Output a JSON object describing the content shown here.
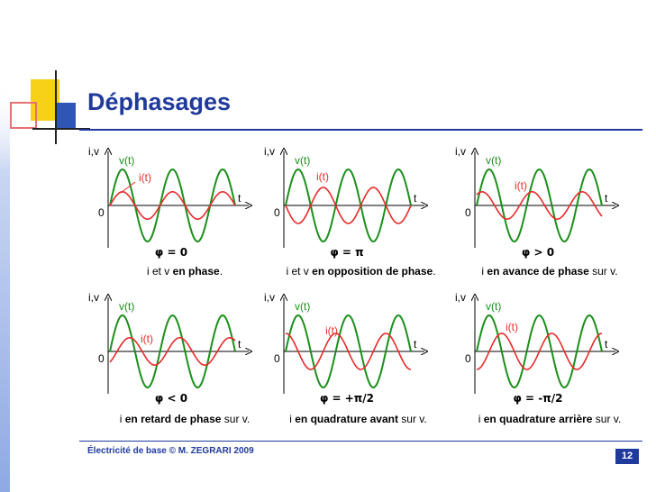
{
  "slide": {
    "title": "Déphasages",
    "footer": "Électricité de base © M. ZEGRARI 2009",
    "page_number": "12"
  },
  "colors": {
    "voltage": "#1b8f1b",
    "current": "#e82a2a",
    "title": "#1f3a9c",
    "deco_yellow": "#f7d117",
    "deco_blue": "#3056b5",
    "deco_red": "#e57272"
  },
  "panels": [
    {
      "axis_y": "i,v",
      "axis_x": "t",
      "origin": "0",
      "v_label": "v(t)",
      "i_label": "i(t)",
      "phase_label": "φ = 0",
      "phase_rad": 0,
      "current_amp": 0.38,
      "caption": {
        "before": "i et v ",
        "emph": "en phase",
        "after": "."
      }
    },
    {
      "axis_y": "i,v",
      "axis_x": "t",
      "origin": "0",
      "v_label": "v(t)",
      "i_label": "i(t)",
      "phase_label": "φ = π",
      "phase_rad": 3.14159,
      "current_amp": 0.5,
      "caption": {
        "before": "i et v ",
        "emph": "en opposition de phase",
        "after": "."
      }
    },
    {
      "axis_y": "i,v",
      "axis_x": "t",
      "origin": "0",
      "v_label": "v(t)",
      "i_label": "i(t)",
      "phase_label": "φ > 0",
      "phase_rad": 0.9,
      "current_amp": 0.38,
      "caption": {
        "before": "i ",
        "emph": "en avance de phase",
        "after": " sur v."
      }
    },
    {
      "axis_y": "i,v",
      "axis_x": "t",
      "origin": "0",
      "v_label": "v(t)",
      "i_label": "i(t)",
      "phase_label": "φ < 0",
      "phase_rad": -0.9,
      "current_amp": 0.38,
      "caption": {
        "before": "i ",
        "emph": "en retard de phase",
        "after": " sur v."
      }
    },
    {
      "axis_y": "i,v",
      "axis_x": "t",
      "origin": "0",
      "v_label": "v(t)",
      "i_label": "i(t)",
      "phase_label": "φ = +π/2",
      "phase_rad": 1.5708,
      "current_amp": 0.5,
      "caption": {
        "before": "i ",
        "emph": "en quadrature avant",
        "after": " sur v."
      }
    },
    {
      "axis_y": "i,v",
      "axis_x": "t",
      "origin": "0",
      "v_label": "v(t)",
      "i_label": "i(t)",
      "phase_label": "φ = -π/2",
      "phase_rad": -1.5708,
      "current_amp": 0.5,
      "caption": {
        "before": "i ",
        "emph": "en quadrature arrière",
        "after": " sur v."
      }
    }
  ]
}
